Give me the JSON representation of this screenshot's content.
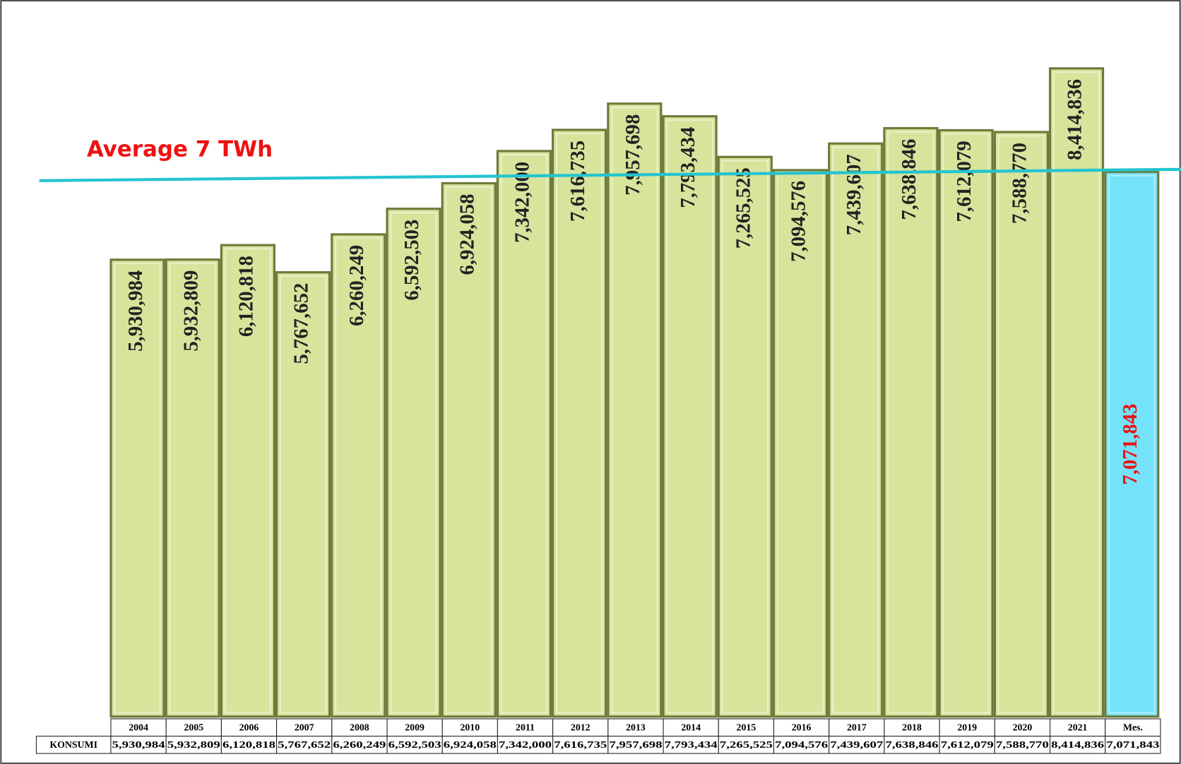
{
  "chart_data": {
    "type": "bar",
    "annotation": "Average 7 TWh",
    "row_label": "KONSUMI",
    "categories": [
      "2004",
      "2005",
      "2006",
      "2007",
      "2008",
      "2009",
      "2010",
      "2011",
      "2012",
      "2013",
      "2014",
      "2015",
      "2016",
      "2017",
      "2018",
      "2019",
      "2020",
      "2021",
      "Mes."
    ],
    "values": [
      5930984,
      5932809,
      6120818,
      5767652,
      6260249,
      6592503,
      6924058,
      7342000,
      7616735,
      7957698,
      7793434,
      7265525,
      7094576,
      7439607,
      7638846,
      7612079,
      7588770,
      8414836,
      7071843
    ],
    "value_labels": [
      "5,930,984",
      "5,932,809",
      "6,120,818",
      "5,767,652",
      "6,260,249",
      "6,592,503",
      "6,924,058",
      "7,342,000",
      "7,616,735",
      "7,957,698",
      "7,793,434",
      "7,265,525",
      "7,094,576",
      "7,439,607",
      "7,638,846",
      "7,612,079",
      "7,588,770",
      "8,414,836",
      "7,071,843"
    ],
    "colors": [
      "#d7e49c",
      "#d7e49c",
      "#d7e49c",
      "#d7e49c",
      "#d7e49c",
      "#d7e49c",
      "#d7e49c",
      "#d7e49c",
      "#d7e49c",
      "#d7e49c",
      "#d7e49c",
      "#d7e49c",
      "#d7e49c",
      "#d7e49c",
      "#d7e49c",
      "#d7e49c",
      "#d7e49c",
      "#d7e49c",
      "#74e2f8"
    ],
    "label_colors": [
      "#222",
      "#222",
      "#222",
      "#222",
      "#222",
      "#222",
      "#222",
      "#222",
      "#222",
      "#222",
      "#222",
      "#222",
      "#222",
      "#222",
      "#222",
      "#222",
      "#222",
      "#222",
      "#ee1111"
    ],
    "ylim": [
      0,
      9000000
    ]
  }
}
